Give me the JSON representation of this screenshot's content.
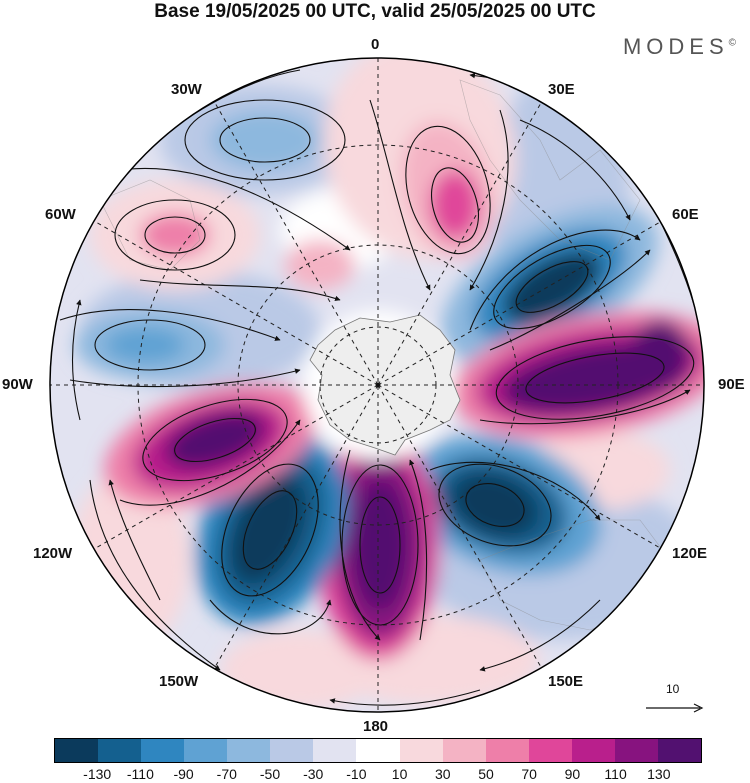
{
  "title": "Base 19/05/2025 00 UTC, valid 25/05/2025 00 UTC",
  "brand": "MODES",
  "brand_mark": "©",
  "longitude_labels": {
    "lon_0": "0",
    "lon_30e": "30E",
    "lon_60e": "60E",
    "lon_90e": "90E",
    "lon_120e": "120E",
    "lon_150e": "150E",
    "lon_180": "180",
    "lon_150w": "150W",
    "lon_120w": "120W",
    "lon_90w": "90W",
    "lon_60w": "60W",
    "lon_30w": "30W"
  },
  "colorbar": {
    "colors": [
      "#0b3a5c",
      "#14608f",
      "#2f86c0",
      "#5fa2d3",
      "#8db8de",
      "#bac9e6",
      "#e2e3f1",
      "#ffffff",
      "#f8d9dd",
      "#f4b3c4",
      "#ee7fa9",
      "#e0469a",
      "#b91f8c",
      "#87137f",
      "#521170"
    ],
    "tick_labels": [
      "-130",
      "-110",
      "-90",
      "-70",
      "-50",
      "-30",
      "-10",
      "10",
      "30",
      "50",
      "70",
      "90",
      "110",
      "130"
    ]
  },
  "vector_reference": "10",
  "icons": {
    "vector_reference_arrow": "arrow-right-icon"
  }
}
